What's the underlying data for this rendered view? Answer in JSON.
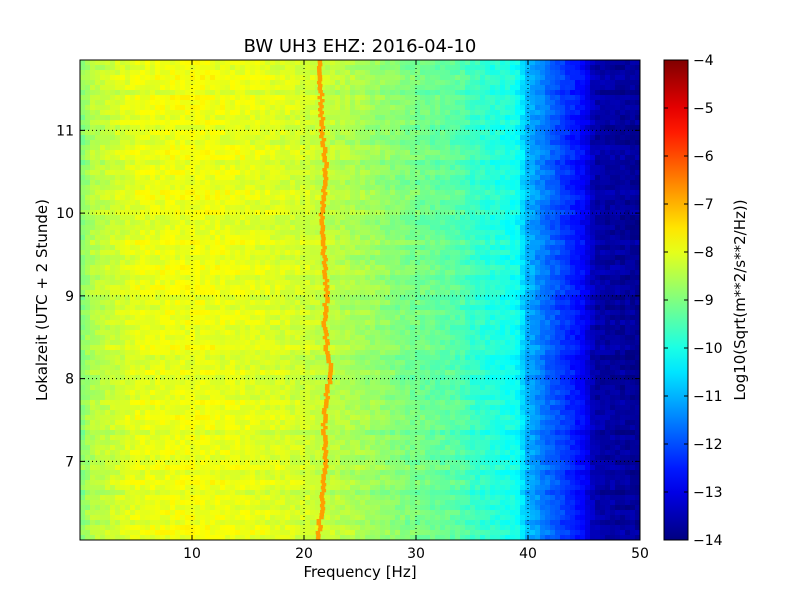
{
  "chart_data": {
    "type": "heatmap",
    "title": "BW UH3 EHZ: 2016-04-10",
    "xlabel": "Frequency [Hz]",
    "ylabel": "Lokalzeit (UTC + 2 Stunde)",
    "xlim": [
      0,
      50
    ],
    "ylim": [
      11.85,
      6.05
    ],
    "x_ticks": [
      10,
      20,
      30,
      40,
      50
    ],
    "x_tick_labels": [
      "10",
      "20",
      "30",
      "40",
      "50"
    ],
    "y_ticks": [
      7,
      8,
      9,
      10,
      11
    ],
    "y_tick_labels": [
      "7",
      "8",
      "9",
      "10",
      "11"
    ],
    "grid": true,
    "colormap": "jet",
    "colorbar": {
      "label": "Log10(Sqrt(m**2/s**2/Hz))",
      "range": [
        -14,
        -4
      ],
      "ticks": [
        -4,
        -5,
        -6,
        -7,
        -8,
        -9,
        -10,
        -11,
        -12,
        -13,
        -14
      ],
      "tick_labels": [
        "−4",
        "−5",
        "−6",
        "−7",
        "−8",
        "−9",
        "−10",
        "−11",
        "−12",
        "−13",
        "−14"
      ]
    },
    "spectrum_profile": {
      "frequency_hz": [
        0,
        1,
        5,
        10,
        15,
        20,
        25,
        30,
        34,
        35,
        39,
        40,
        42,
        45,
        46,
        50
      ],
      "log10_amplitude": [
        -9.0,
        -8.5,
        -8.0,
        -7.9,
        -8.0,
        -8.2,
        -8.6,
        -9.1,
        -9.4,
        -9.7,
        -10.1,
        -11.0,
        -11.8,
        -12.8,
        -13.6,
        -13.8
      ]
    },
    "peak_line": {
      "time_h": [
        6.05,
        6.5,
        7.0,
        7.5,
        7.9,
        8.1,
        8.4,
        8.7,
        9.0,
        9.3,
        9.6,
        10.0,
        10.3,
        10.6,
        11.0,
        11.4,
        11.85
      ],
      "frequency_hz": [
        21.2,
        21.6,
        21.9,
        21.8,
        22.1,
        22.4,
        22.0,
        21.8,
        22.0,
        21.9,
        21.7,
        21.6,
        21.8,
        21.9,
        21.6,
        21.5,
        21.4
      ],
      "log10_amplitude": -6.8
    }
  }
}
